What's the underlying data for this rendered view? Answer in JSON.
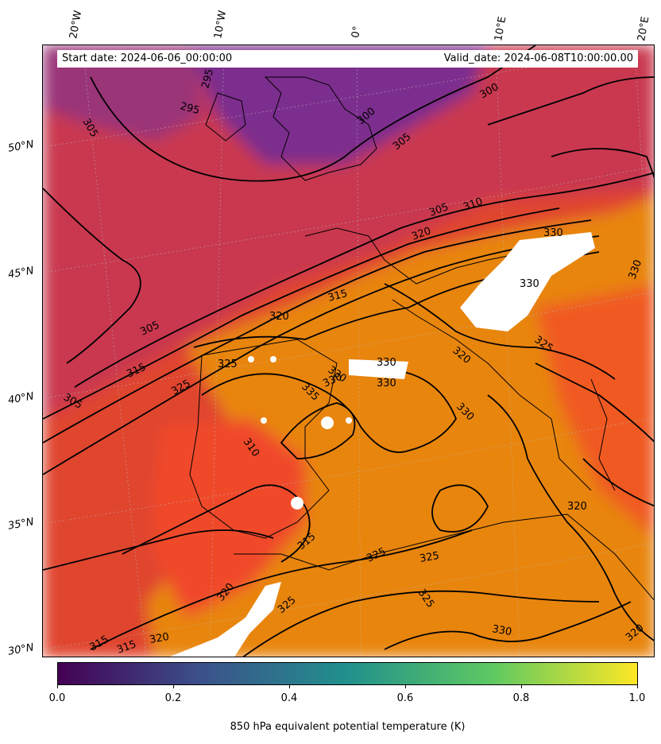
{
  "info": {
    "start_date": "Start date: 2024-06-06_00:00:00",
    "valid_date": "Valid_date: 2024-06-08T10:00:00.00"
  },
  "lon_labels": [
    "20°W",
    "10°W",
    "0°",
    "10°E",
    "20°E"
  ],
  "lat_labels": [
    "50°N",
    "45°N",
    "40°N",
    "35°N",
    "30°N"
  ],
  "contour_labels": [
    "295",
    "295",
    "300",
    "300",
    "305",
    "305",
    "305",
    "305",
    "305",
    "310",
    "310",
    "315",
    "315",
    "315",
    "315",
    "315",
    "320",
    "320",
    "320",
    "320",
    "320",
    "320",
    "320",
    "325",
    "325",
    "325",
    "325",
    "325",
    "325",
    "325",
    "330",
    "330",
    "330",
    "330",
    "330",
    "330",
    "330",
    "330",
    "330",
    "335"
  ],
  "colorbar": {
    "title": "850 hPa equivalent potential temperature (K)",
    "ticks": [
      "0.0",
      "0.2",
      "0.4",
      "0.6",
      "0.8",
      "1.0"
    ],
    "colormap": "viridis",
    "colors": [
      "#440154",
      "#3b528b",
      "#21918c",
      "#5ec962",
      "#fde725"
    ]
  },
  "field_colors": {
    "cold": "#7b2d8e",
    "mid": "#c0365a",
    "warm": "#f04a2a",
    "hot": "#e8850f"
  }
}
